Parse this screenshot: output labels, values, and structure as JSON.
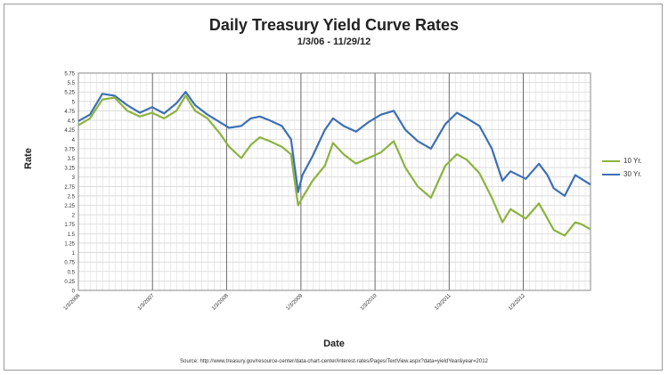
{
  "chart_data": {
    "type": "line",
    "title": "Daily Treasury Yield Curve Rates",
    "subtitle": "1/3/06 - 11/29/12",
    "xlabel": "Date",
    "ylabel": "Rate",
    "source": "Source: http://www.treasury.gov/resource-center/data-chart-center/interest-rates/Pages/TextView.aspx?data=yieldYear&year=2012",
    "ylim": [
      0,
      5.75
    ],
    "ytick_step": 0.25,
    "yticks": [
      "0",
      "0.25",
      "0.5",
      "0.75",
      "1",
      "1.25",
      "1.5",
      "1.75",
      "2",
      "2.25",
      "2.5",
      "2.75",
      "3",
      "3.25",
      "3.5",
      "3.75",
      "4",
      "4.25",
      "4.5",
      "4.75",
      "5",
      "5.25",
      "5.5",
      "5.75"
    ],
    "xlim": [
      "2006-01-03",
      "2012-11-29"
    ],
    "xtick_labels": [
      "1/3/2006",
      "1/3/2007",
      "1/3/2008",
      "1/3/2009",
      "1/3/2010",
      "1/3/2011",
      "1/3/2012"
    ],
    "xtick_dates": [
      "2006-01-03",
      "2007-01-03",
      "2008-01-03",
      "2009-01-03",
      "2010-01-03",
      "2011-01-03",
      "2012-01-03"
    ],
    "grid": true,
    "legend_position": "right",
    "x": [
      "2006-01-03",
      "2006-03-01",
      "2006-05-01",
      "2006-07-01",
      "2006-09-01",
      "2006-11-01",
      "2007-01-01",
      "2007-03-01",
      "2007-05-01",
      "2007-06-15",
      "2007-08-01",
      "2007-10-01",
      "2007-12-01",
      "2008-01-15",
      "2008-03-15",
      "2008-05-01",
      "2008-06-15",
      "2008-08-01",
      "2008-10-01",
      "2008-11-15",
      "2008-12-20",
      "2009-01-10",
      "2009-03-01",
      "2009-05-01",
      "2009-06-10",
      "2009-08-01",
      "2009-10-01",
      "2009-12-01",
      "2010-02-01",
      "2010-04-05",
      "2010-06-01",
      "2010-08-01",
      "2010-10-05",
      "2010-12-15",
      "2011-02-10",
      "2011-04-01",
      "2011-06-01",
      "2011-08-01",
      "2011-09-22",
      "2011-11-01",
      "2012-01-15",
      "2012-03-20",
      "2012-05-01",
      "2012-06-01",
      "2012-07-25",
      "2012-09-15",
      "2012-10-15",
      "2012-11-29"
    ],
    "series": [
      {
        "name": "10 Yr.",
        "color": "#8cb33e",
        "values": [
          4.37,
          4.55,
          5.05,
          5.1,
          4.75,
          4.6,
          4.7,
          4.55,
          4.75,
          5.15,
          4.75,
          4.55,
          4.15,
          3.8,
          3.5,
          3.85,
          4.05,
          3.95,
          3.8,
          3.6,
          2.25,
          2.45,
          2.9,
          3.3,
          3.9,
          3.6,
          3.35,
          3.5,
          3.65,
          3.95,
          3.25,
          2.75,
          2.45,
          3.3,
          3.6,
          3.45,
          3.1,
          2.45,
          1.8,
          2.15,
          1.9,
          2.3,
          1.9,
          1.6,
          1.45,
          1.8,
          1.75,
          1.62
        ]
      },
      {
        "name": "30 Yr.",
        "color": "#3d6fb5",
        "values": [
          4.48,
          4.65,
          5.2,
          5.15,
          4.9,
          4.7,
          4.85,
          4.68,
          4.95,
          5.25,
          4.9,
          4.65,
          4.45,
          4.3,
          4.35,
          4.55,
          4.6,
          4.5,
          4.35,
          4.0,
          2.6,
          3.05,
          3.55,
          4.25,
          4.55,
          4.35,
          4.2,
          4.45,
          4.65,
          4.75,
          4.25,
          3.95,
          3.75,
          4.4,
          4.7,
          4.55,
          4.35,
          3.75,
          2.9,
          3.15,
          2.95,
          3.35,
          3.05,
          2.7,
          2.5,
          3.05,
          2.95,
          2.8
        ]
      }
    ]
  }
}
